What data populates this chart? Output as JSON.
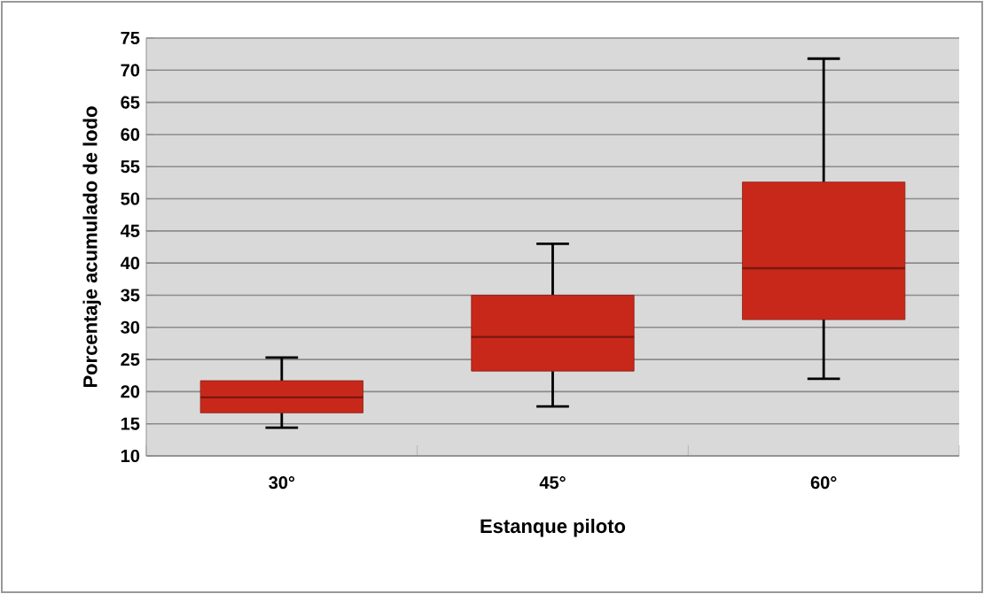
{
  "chart_data": {
    "type": "box",
    "xlabel": "Estanque piloto",
    "ylabel": "Porcentaje acumulado de lodo",
    "categories": [
      "30°",
      "45°",
      "60°"
    ],
    "boxes": [
      {
        "low": 14.4,
        "q1": 16.7,
        "median": 19.1,
        "q3": 21.7,
        "high": 25.3
      },
      {
        "low": 17.7,
        "q1": 23.2,
        "median": 28.5,
        "q3": 35,
        "high": 43
      },
      {
        "low": 22,
        "q1": 31.2,
        "median": 39.2,
        "q3": 52.6,
        "high": 71.8
      }
    ],
    "color": "#c8281a",
    "ylim": [
      10,
      75
    ],
    "yticks": [
      10,
      15,
      20,
      25,
      30,
      35,
      40,
      45,
      50,
      55,
      60,
      65,
      70,
      75
    ],
    "grid": "y"
  }
}
